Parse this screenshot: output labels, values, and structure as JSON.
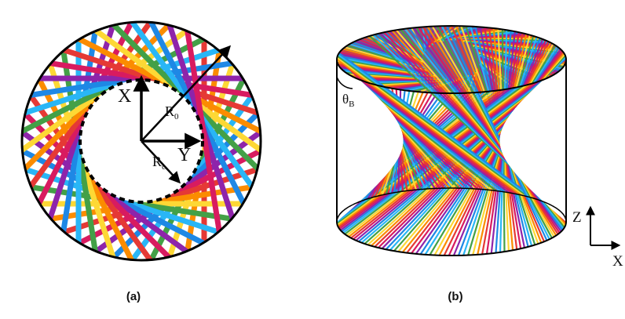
{
  "palette": [
    "#e53935",
    "#fb8c00",
    "#fdd835",
    "#43a047",
    "#29b6f6",
    "#1e88e5",
    "#8e24aa",
    "#d81b60"
  ],
  "panel_a": {
    "caption": "(a)",
    "labels": {
      "x": "X",
      "y": "Y",
      "r0_main": "R",
      "r0_sub": "0",
      "rc_main": "R",
      "rc_sub": "c"
    }
  },
  "panel_b": {
    "caption": "(b)",
    "labels": {
      "theta_main": "θ",
      "theta_sub": "B",
      "z": "Z",
      "x": "X"
    }
  }
}
